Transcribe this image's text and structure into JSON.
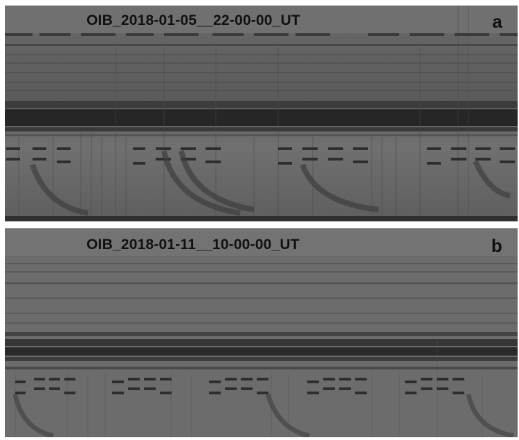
{
  "panels": [
    {
      "letter": "a",
      "title": "OIB_2018-01-05__22-00-00_UT"
    },
    {
      "letter": "b",
      "title": "OIB_2018-01-11__10-00-00_UT"
    }
  ]
}
